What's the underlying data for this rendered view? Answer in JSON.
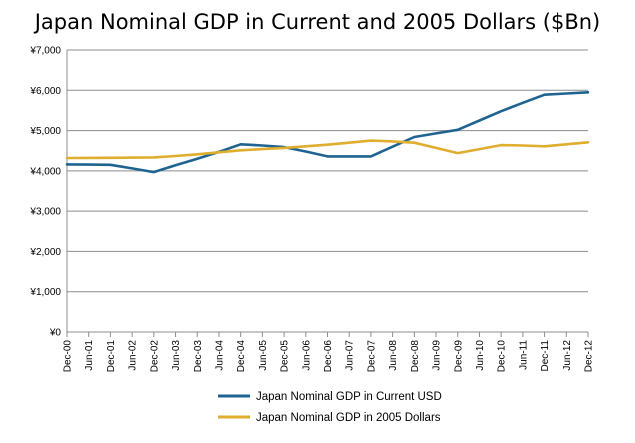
{
  "chart_data": {
    "type": "line",
    "title": "Japan Nominal GDP in Current and 2005 Dollars ($Bn)",
    "xlabel": "",
    "ylabel": "",
    "categories": [
      "Dec-00",
      "Jun-01",
      "Dec-01",
      "Jun-02",
      "Dec-02",
      "Jun-03",
      "Dec-03",
      "Jun-04",
      "Dec-04",
      "Jun-05",
      "Dec-05",
      "Jun-06",
      "Dec-06",
      "Jun-07",
      "Dec-07",
      "Jun-08",
      "Dec-08",
      "Jun-09",
      "Dec-09",
      "Jun-10",
      "Dec-10",
      "Jun-11",
      "Dec-11",
      "Jun-12",
      "Dec-12"
    ],
    "ylim": [
      0,
      7000
    ],
    "yticks": [
      0,
      1000,
      2000,
      3000,
      4000,
      5000,
      6000,
      7000
    ],
    "ytick_labels": [
      "¥0",
      "¥1,000",
      "¥2,000",
      "¥3,000",
      "¥4,000",
      "¥5,000",
      "¥6,000",
      "¥7,000"
    ],
    "grid": true,
    "legend_position": "bottom",
    "series": [
      {
        "name": "Japan Nominal GDP in Current USD",
        "color": "#1f6391",
        "values": [
          4160,
          4155,
          4150,
          4060,
          3970,
          4140,
          4300,
          4470,
          4660,
          4630,
          4590,
          4480,
          4360,
          4360,
          4360,
          4600,
          4840,
          4930,
          5020,
          5250,
          5480,
          5690,
          5890,
          5920,
          5950
        ]
      },
      {
        "name": "Japan Nominal GDP in 2005 Dollars",
        "color": "#e0ae2f",
        "values": [
          4320,
          4322,
          4325,
          4330,
          4335,
          4370,
          4410,
          4460,
          4510,
          4540,
          4570,
          4610,
          4650,
          4700,
          4750,
          4730,
          4700,
          4570,
          4440,
          4540,
          4640,
          4630,
          4610,
          4660,
          4710
        ]
      }
    ]
  }
}
